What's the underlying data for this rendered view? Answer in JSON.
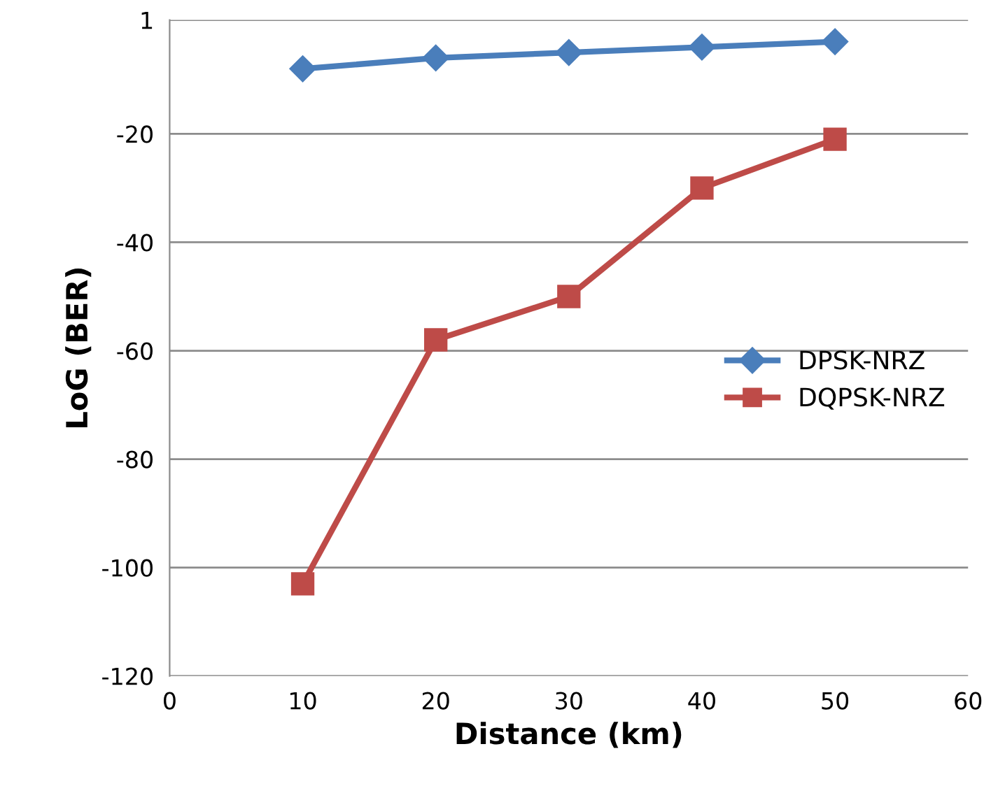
{
  "chart_data": {
    "type": "line",
    "xlabel": "Distance (km)",
    "ylabel": "LoG (BER)",
    "x": [
      10,
      20,
      30,
      40,
      50
    ],
    "series": [
      {
        "name": "DPSK-NRZ",
        "color": "#4a7ebb",
        "marker": "diamond",
        "values": [
          -8,
          -6,
          -5,
          -4,
          -3
        ]
      },
      {
        "name": "DQPSK-NRZ",
        "color": "#be4b48",
        "marker": "square",
        "values": [
          -103,
          -58,
          -50,
          -30,
          -21
        ]
      }
    ],
    "xlim": [
      0,
      60
    ],
    "xticks": [
      0,
      10,
      20,
      30,
      40,
      50,
      60
    ],
    "ylim": [
      -120,
      1
    ],
    "yticks": [
      1,
      -20,
      -40,
      -60,
      -80,
      -100,
      -120
    ],
    "grid": "y",
    "legend": "right",
    "line_style": "solid"
  }
}
